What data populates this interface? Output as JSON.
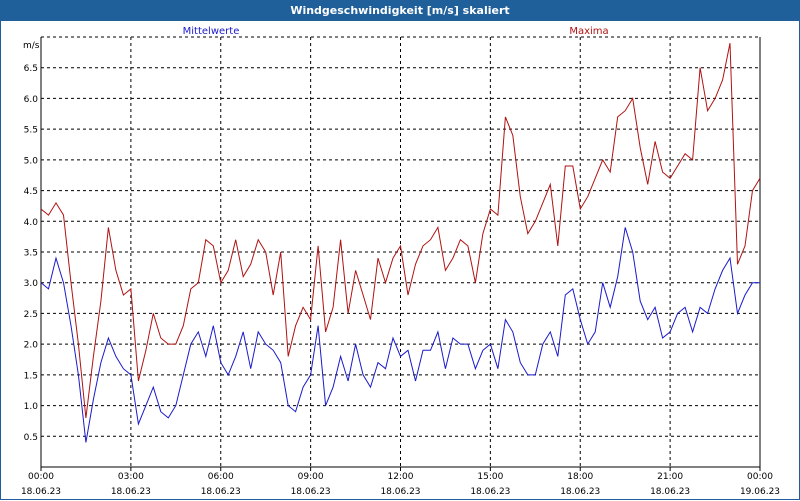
{
  "window": {
    "title": "Windgeschwindigkeit [m/s] skaliert"
  },
  "chart_data": {
    "type": "line",
    "title": "Windgeschwindigkeit [m/s] skaliert",
    "ylabel": "m/s",
    "ylim": [
      0,
      7
    ],
    "yticks": [
      0.5,
      1.0,
      1.5,
      2.0,
      2.5,
      3.0,
      3.5,
      4.0,
      4.5,
      5.0,
      5.5,
      6.0,
      6.5
    ],
    "ytick_labels": [
      "0.5",
      "1.0",
      "1.5",
      "2.0",
      "2.5",
      "3.0",
      "3.5",
      "4.0",
      "4.5",
      "5.0",
      "5.5",
      "6.0",
      "6.5"
    ],
    "xlim_hours": [
      0,
      24
    ],
    "x_ticks": [
      {
        "hour": 0,
        "time": "00:00",
        "date": "18.06.23"
      },
      {
        "hour": 3,
        "time": "03:00",
        "date": "18.06.23"
      },
      {
        "hour": 6,
        "time": "06:00",
        "date": "18.06.23"
      },
      {
        "hour": 9,
        "time": "09:00",
        "date": "18.06.23"
      },
      {
        "hour": 12,
        "time": "12:00",
        "date": "18.06.23"
      },
      {
        "hour": 15,
        "time": "15:00",
        "date": "18.06.23"
      },
      {
        "hour": 18,
        "time": "18:00",
        "date": "18.06.23"
      },
      {
        "hour": 21,
        "time": "21:00",
        "date": "18.06.23"
      },
      {
        "hour": 24,
        "time": "00:00",
        "date": "19.06.23"
      }
    ],
    "grid": true,
    "series": [
      {
        "name": "Mittelwerte",
        "color": "#1a1acc",
        "points": [
          [
            0,
            3.0
          ],
          [
            0.25,
            2.9
          ],
          [
            0.5,
            3.4
          ],
          [
            0.75,
            3.0
          ],
          [
            1.0,
            2.3
          ],
          [
            1.25,
            1.5
          ],
          [
            1.5,
            0.4
          ],
          [
            1.75,
            1.1
          ],
          [
            2.0,
            1.7
          ],
          [
            2.25,
            2.1
          ],
          [
            2.5,
            1.8
          ],
          [
            2.75,
            1.6
          ],
          [
            3.0,
            1.5
          ],
          [
            3.25,
            0.7
          ],
          [
            3.5,
            1.0
          ],
          [
            3.75,
            1.3
          ],
          [
            4.0,
            0.9
          ],
          [
            4.25,
            0.8
          ],
          [
            4.5,
            1.0
          ],
          [
            4.75,
            1.5
          ],
          [
            5.0,
            2.0
          ],
          [
            5.25,
            2.2
          ],
          [
            5.5,
            1.8
          ],
          [
            5.75,
            2.3
          ],
          [
            6.0,
            1.7
          ],
          [
            6.25,
            1.5
          ],
          [
            6.5,
            1.8
          ],
          [
            6.75,
            2.2
          ],
          [
            7.0,
            1.6
          ],
          [
            7.25,
            2.2
          ],
          [
            7.5,
            2.0
          ],
          [
            7.75,
            1.9
          ],
          [
            8.0,
            1.7
          ],
          [
            8.25,
            1.0
          ],
          [
            8.5,
            0.9
          ],
          [
            8.75,
            1.3
          ],
          [
            9.0,
            1.5
          ],
          [
            9.25,
            2.3
          ],
          [
            9.5,
            1.0
          ],
          [
            9.75,
            1.3
          ],
          [
            10.0,
            1.8
          ],
          [
            10.25,
            1.4
          ],
          [
            10.5,
            2.0
          ],
          [
            10.75,
            1.5
          ],
          [
            11.0,
            1.3
          ],
          [
            11.25,
            1.7
          ],
          [
            11.5,
            1.6
          ],
          [
            11.75,
            2.1
          ],
          [
            12.0,
            1.8
          ],
          [
            12.25,
            1.9
          ],
          [
            12.5,
            1.4
          ],
          [
            12.75,
            1.9
          ],
          [
            13.0,
            1.9
          ],
          [
            13.25,
            2.2
          ],
          [
            13.5,
            1.6
          ],
          [
            13.75,
            2.1
          ],
          [
            14.0,
            2.0
          ],
          [
            14.25,
            2.0
          ],
          [
            14.5,
            1.6
          ],
          [
            14.75,
            1.9
          ],
          [
            15.0,
            2.0
          ],
          [
            15.25,
            1.6
          ],
          [
            15.5,
            2.4
          ],
          [
            15.75,
            2.2
          ],
          [
            16.0,
            1.7
          ],
          [
            16.25,
            1.5
          ],
          [
            16.5,
            1.5
          ],
          [
            16.75,
            2.0
          ],
          [
            17.0,
            2.2
          ],
          [
            17.25,
            1.8
          ],
          [
            17.5,
            2.8
          ],
          [
            17.75,
            2.9
          ],
          [
            18.0,
            2.4
          ],
          [
            18.25,
            2.0
          ],
          [
            18.5,
            2.2
          ],
          [
            18.75,
            3.0
          ],
          [
            19.0,
            2.6
          ],
          [
            19.25,
            3.1
          ],
          [
            19.5,
            3.9
          ],
          [
            19.75,
            3.5
          ],
          [
            20.0,
            2.7
          ],
          [
            20.25,
            2.4
          ],
          [
            20.5,
            2.6
          ],
          [
            20.75,
            2.1
          ],
          [
            21.0,
            2.2
          ],
          [
            21.25,
            2.5
          ],
          [
            21.5,
            2.6
          ],
          [
            21.75,
            2.2
          ],
          [
            22.0,
            2.6
          ],
          [
            22.25,
            2.5
          ],
          [
            22.5,
            2.9
          ],
          [
            22.75,
            3.2
          ],
          [
            23.0,
            3.4
          ],
          [
            23.25,
            2.5
          ],
          [
            23.5,
            2.8
          ],
          [
            23.75,
            3.0
          ],
          [
            24.0,
            3.0
          ]
        ]
      },
      {
        "name": "Maxima",
        "color": "#b01212",
        "points": [
          [
            0,
            4.2
          ],
          [
            0.25,
            4.1
          ],
          [
            0.5,
            4.3
          ],
          [
            0.75,
            4.1
          ],
          [
            1.0,
            3.0
          ],
          [
            1.25,
            2.0
          ],
          [
            1.5,
            0.8
          ],
          [
            1.75,
            1.8
          ],
          [
            2.0,
            2.7
          ],
          [
            2.25,
            3.9
          ],
          [
            2.5,
            3.2
          ],
          [
            2.75,
            2.8
          ],
          [
            3.0,
            2.9
          ],
          [
            3.25,
            1.4
          ],
          [
            3.5,
            1.9
          ],
          [
            3.75,
            2.5
          ],
          [
            4.0,
            2.1
          ],
          [
            4.25,
            2.0
          ],
          [
            4.5,
            2.0
          ],
          [
            4.75,
            2.3
          ],
          [
            5.0,
            2.9
          ],
          [
            5.25,
            3.0
          ],
          [
            5.5,
            3.7
          ],
          [
            5.75,
            3.6
          ],
          [
            6.0,
            3.0
          ],
          [
            6.25,
            3.2
          ],
          [
            6.5,
            3.7
          ],
          [
            6.75,
            3.1
          ],
          [
            7.0,
            3.3
          ],
          [
            7.25,
            3.7
          ],
          [
            7.5,
            3.5
          ],
          [
            7.75,
            2.8
          ],
          [
            8.0,
            3.5
          ],
          [
            8.25,
            1.8
          ],
          [
            8.5,
            2.3
          ],
          [
            8.75,
            2.6
          ],
          [
            9.0,
            2.4
          ],
          [
            9.25,
            3.6
          ],
          [
            9.5,
            2.2
          ],
          [
            9.75,
            2.6
          ],
          [
            10.0,
            3.7
          ],
          [
            10.25,
            2.5
          ],
          [
            10.5,
            3.2
          ],
          [
            10.75,
            2.8
          ],
          [
            11.0,
            2.4
          ],
          [
            11.25,
            3.4
          ],
          [
            11.5,
            3.0
          ],
          [
            11.75,
            3.4
          ],
          [
            12.0,
            3.6
          ],
          [
            12.25,
            2.8
          ],
          [
            12.5,
            3.3
          ],
          [
            12.75,
            3.6
          ],
          [
            13.0,
            3.7
          ],
          [
            13.25,
            3.9
          ],
          [
            13.5,
            3.2
          ],
          [
            13.75,
            3.4
          ],
          [
            14.0,
            3.7
          ],
          [
            14.25,
            3.6
          ],
          [
            14.5,
            3.0
          ],
          [
            14.75,
            3.8
          ],
          [
            15.0,
            4.2
          ],
          [
            15.25,
            4.1
          ],
          [
            15.5,
            5.7
          ],
          [
            15.75,
            5.4
          ],
          [
            16.0,
            4.4
          ],
          [
            16.25,
            3.8
          ],
          [
            16.5,
            4.0
          ],
          [
            16.75,
            4.3
          ],
          [
            17.0,
            4.6
          ],
          [
            17.25,
            3.6
          ],
          [
            17.5,
            4.9
          ],
          [
            17.75,
            4.9
          ],
          [
            18.0,
            4.2
          ],
          [
            18.25,
            4.4
          ],
          [
            18.5,
            4.7
          ],
          [
            18.75,
            5.0
          ],
          [
            19.0,
            4.8
          ],
          [
            19.25,
            5.7
          ],
          [
            19.5,
            5.8
          ],
          [
            19.75,
            6.0
          ],
          [
            20.0,
            5.2
          ],
          [
            20.25,
            4.6
          ],
          [
            20.5,
            5.3
          ],
          [
            20.75,
            4.8
          ],
          [
            21.0,
            4.7
          ],
          [
            21.25,
            4.9
          ],
          [
            21.5,
            5.1
          ],
          [
            21.75,
            5.0
          ],
          [
            22.0,
            6.5
          ],
          [
            22.25,
            5.8
          ],
          [
            22.5,
            6.0
          ],
          [
            22.75,
            6.3
          ],
          [
            23.0,
            6.9
          ],
          [
            23.25,
            3.3
          ],
          [
            23.5,
            3.6
          ],
          [
            23.75,
            4.5
          ],
          [
            24.0,
            4.7
          ]
        ]
      }
    ]
  }
}
